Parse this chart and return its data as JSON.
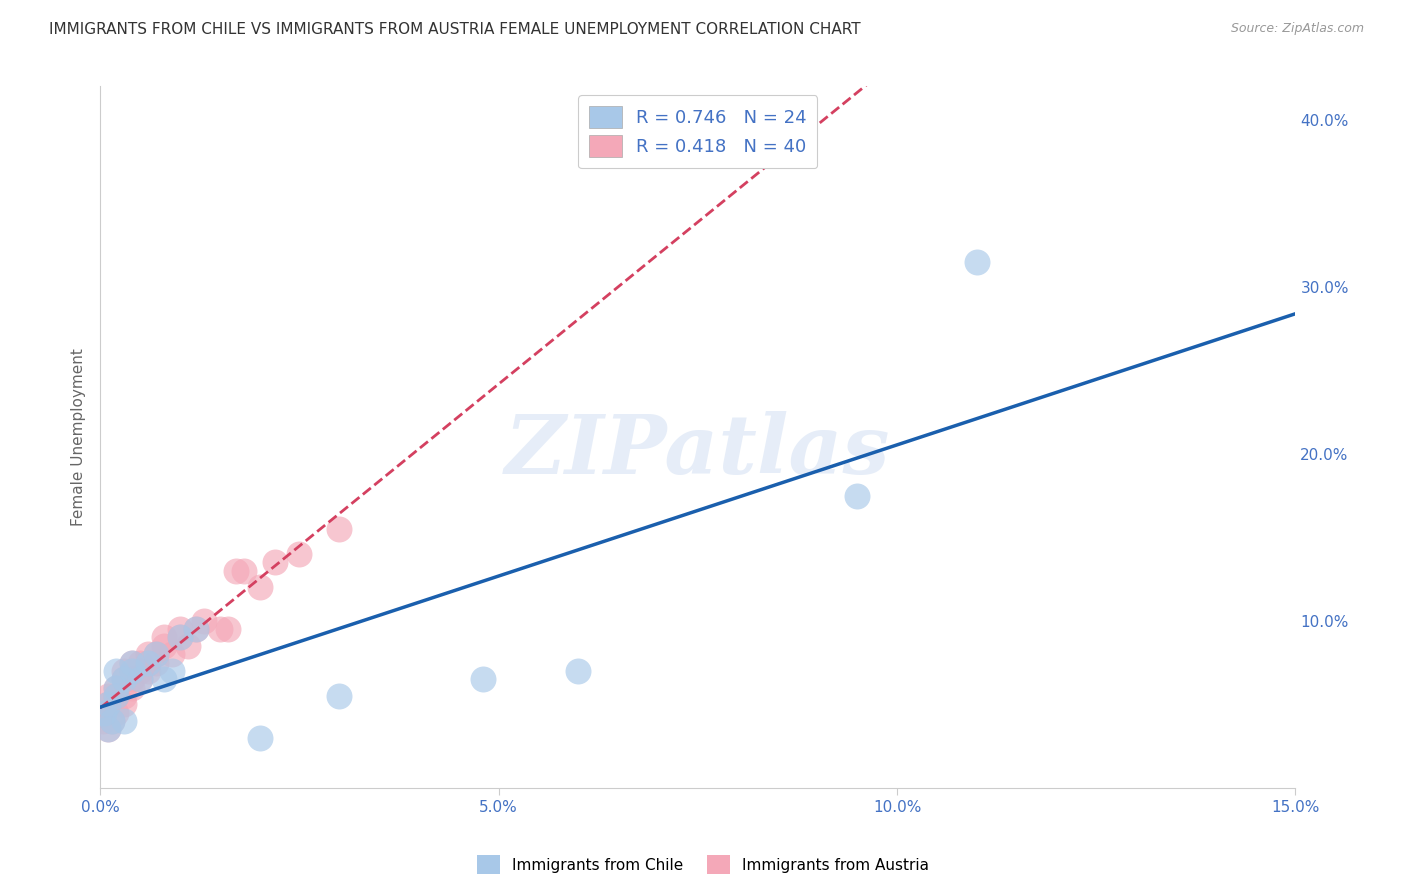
{
  "title": "IMMIGRANTS FROM CHILE VS IMMIGRANTS FROM AUSTRIA FEMALE UNEMPLOYMENT CORRELATION CHART",
  "source": "Source: ZipAtlas.com",
  "ylabel": "Female Unemployment",
  "xlim": [
    0,
    0.15
  ],
  "ylim": [
    0,
    0.42
  ],
  "xticks": [
    0.0,
    0.05,
    0.1,
    0.15
  ],
  "xtick_labels": [
    "0.0%",
    "5.0%",
    "10.0%",
    "15.0%"
  ],
  "yticks_right": [
    0.1,
    0.2,
    0.3,
    0.4
  ],
  "ytick_labels_right": [
    "10.0%",
    "20.0%",
    "30.0%",
    "40.0%"
  ],
  "chile_color": "#a8c8e8",
  "austria_color": "#f4a8b8",
  "chile_line_color": "#1a5fad",
  "austria_line_color": "#d44060",
  "R_chile": 0.746,
  "N_chile": 24,
  "R_austria": 0.418,
  "N_austria": 40,
  "chile_scatter_x": [
    0.0005,
    0.001,
    0.001,
    0.0015,
    0.002,
    0.002,
    0.002,
    0.003,
    0.003,
    0.004,
    0.004,
    0.005,
    0.006,
    0.007,
    0.008,
    0.009,
    0.01,
    0.012,
    0.02,
    0.03,
    0.048,
    0.06,
    0.095,
    0.11
  ],
  "chile_scatter_y": [
    0.045,
    0.035,
    0.05,
    0.04,
    0.055,
    0.06,
    0.07,
    0.065,
    0.04,
    0.07,
    0.075,
    0.065,
    0.075,
    0.08,
    0.065,
    0.07,
    0.09,
    0.095,
    0.03,
    0.055,
    0.065,
    0.07,
    0.175,
    0.315
  ],
  "austria_scatter_x": [
    0.0003,
    0.0005,
    0.001,
    0.001,
    0.001,
    0.0015,
    0.002,
    0.002,
    0.002,
    0.003,
    0.003,
    0.003,
    0.003,
    0.004,
    0.004,
    0.004,
    0.005,
    0.005,
    0.005,
    0.006,
    0.006,
    0.006,
    0.007,
    0.007,
    0.008,
    0.008,
    0.009,
    0.01,
    0.01,
    0.011,
    0.012,
    0.013,
    0.015,
    0.016,
    0.017,
    0.018,
    0.02,
    0.022,
    0.025,
    0.03
  ],
  "austria_scatter_y": [
    0.04,
    0.045,
    0.035,
    0.05,
    0.055,
    0.04,
    0.045,
    0.055,
    0.06,
    0.05,
    0.055,
    0.065,
    0.07,
    0.06,
    0.065,
    0.075,
    0.065,
    0.07,
    0.075,
    0.07,
    0.075,
    0.08,
    0.075,
    0.08,
    0.085,
    0.09,
    0.08,
    0.09,
    0.095,
    0.085,
    0.095,
    0.1,
    0.095,
    0.095,
    0.13,
    0.13,
    0.12,
    0.135,
    0.14,
    0.155
  ],
  "watermark_text": "ZIPatlas",
  "background_color": "#ffffff",
  "grid_color": "#cccccc",
  "title_fontsize": 11,
  "tick_label_color": "#4472c4",
  "ylabel_color": "#666666"
}
